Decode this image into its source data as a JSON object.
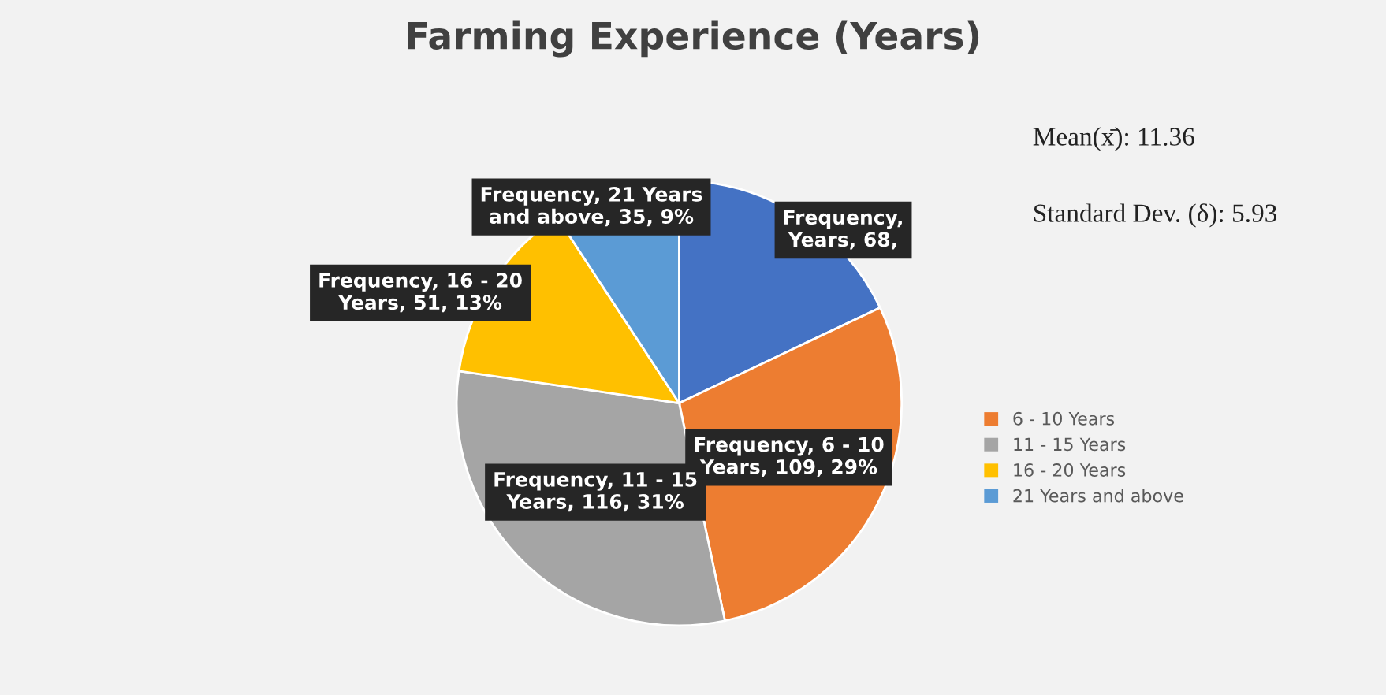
{
  "chart_data": {
    "type": "pie",
    "title": "Farming Experience (Years)",
    "categories": [
      null,
      "6 - 10 Years",
      "11 - 15 Years",
      "16 - 20 Years",
      "21 Years and above"
    ],
    "values": [
      68,
      109,
      116,
      51,
      35
    ],
    "colors": [
      "#4472c4",
      "#ed7d31",
      "#a5a5a5",
      "#ffc000",
      "#5b9bd5"
    ],
    "value_labels": [
      "Frequency,\nYears, 68,",
      "Frequency, 6 - 10\nYears, 109, 29%",
      "Frequency, 11 - 15\nYears, 116, 31%",
      "Frequency, 16 - 20\nYears, 51, 13%",
      "Frequency, 21 Years\nand above, 35, 9%"
    ],
    "annotations": [
      "Mean(x̄): 11.36",
      "Standard Dev. (δ): 5.93"
    ],
    "legend": "right"
  }
}
